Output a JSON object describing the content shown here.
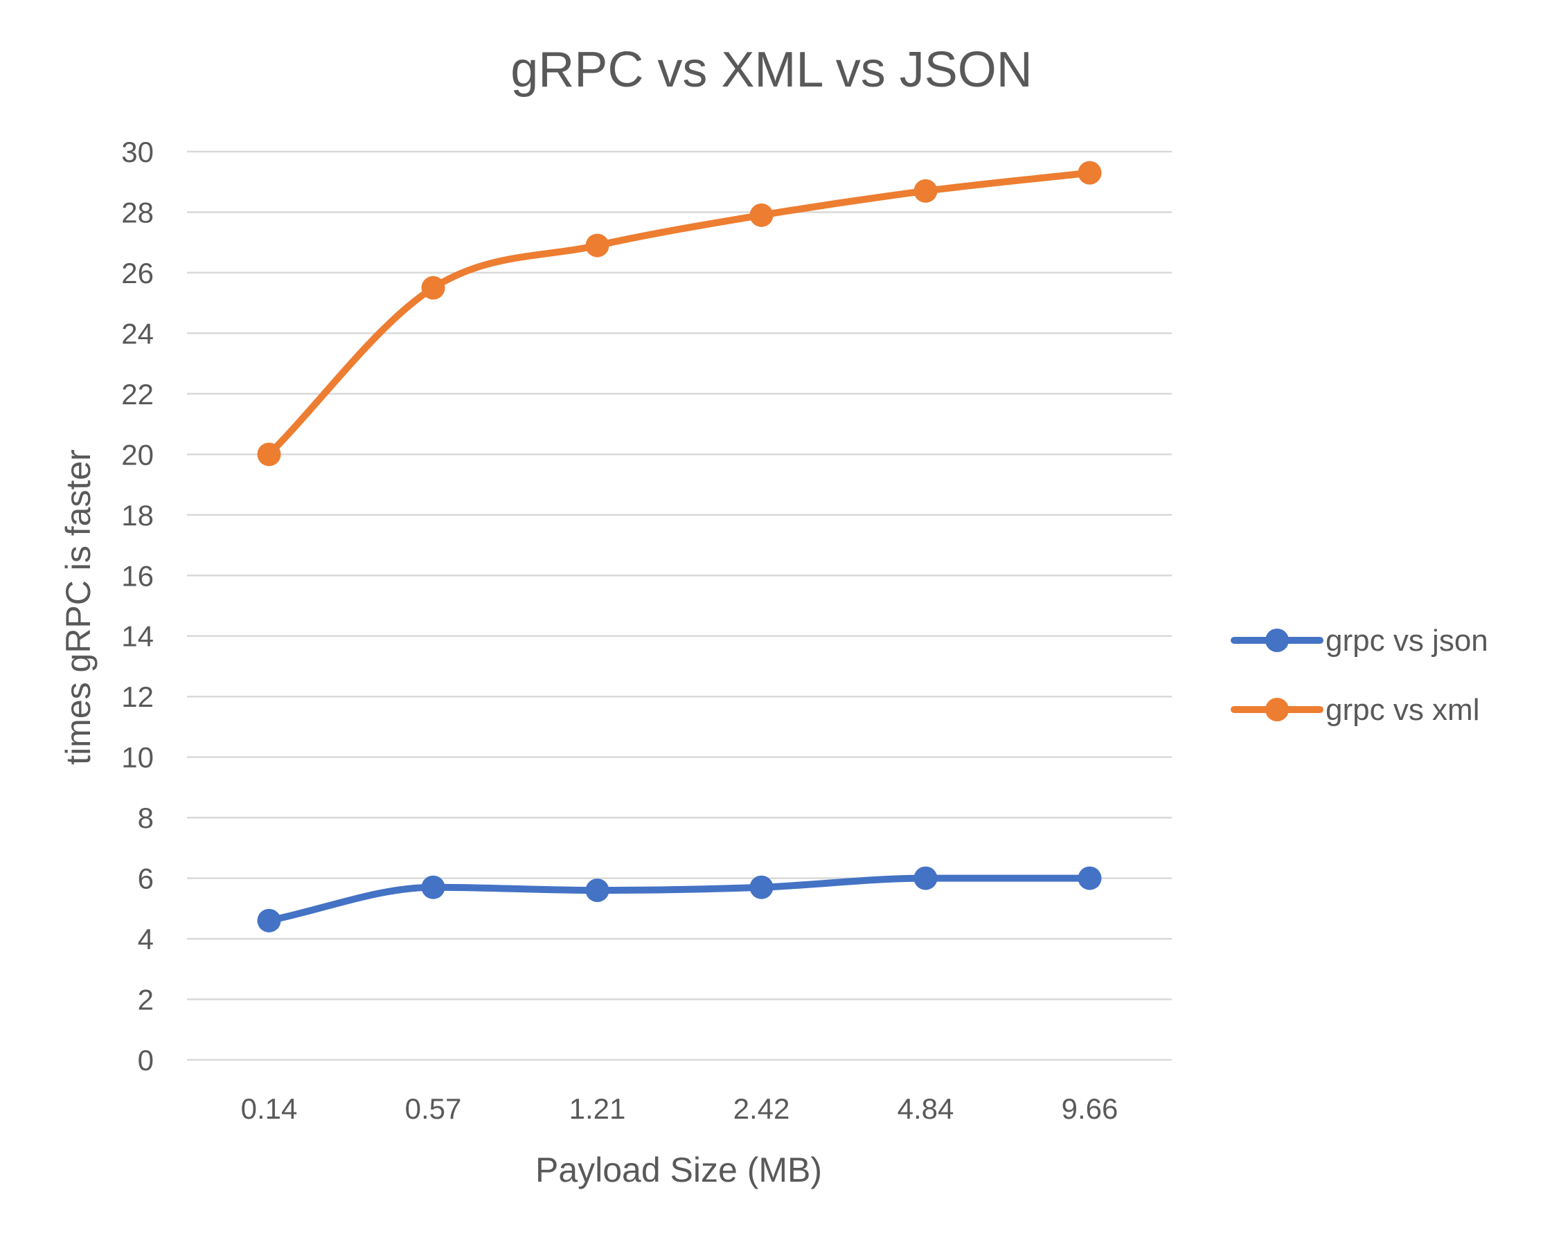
{
  "chart_data": {
    "type": "line",
    "title": "gRPC vs XML vs JSON",
    "xlabel": "Payload Size (MB)",
    "ylabel": "times gRPC is faster",
    "categories": [
      "0.14",
      "0.57",
      "1.21",
      "2.42",
      "4.84",
      "9.66"
    ],
    "series": [
      {
        "name": "grpc vs json",
        "color": "#4472C4",
        "values": [
          4.6,
          5.7,
          5.6,
          5.7,
          6.0,
          6.0
        ]
      },
      {
        "name": "grpc vs xml",
        "color": "#ED7D31",
        "values": [
          20.0,
          25.5,
          26.9,
          27.9,
          28.7,
          29.3
        ]
      }
    ],
    "ylim": [
      0,
      30
    ],
    "yticks": [
      "0",
      "2",
      "4",
      "6",
      "8",
      "10",
      "12",
      "14",
      "16",
      "18",
      "20",
      "22",
      "24",
      "26",
      "28",
      "30"
    ],
    "grid": true,
    "gridColor": "#D9D9D9",
    "legend_position": "right",
    "smooth": true
  }
}
